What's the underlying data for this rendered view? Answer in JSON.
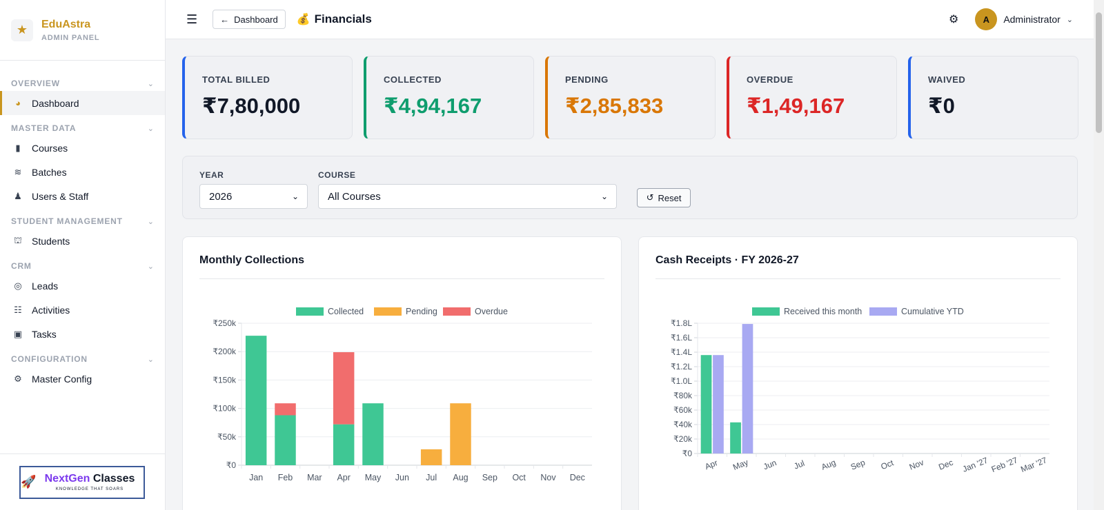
{
  "brand": {
    "name": "EduAstra",
    "subtitle": "ADMIN PANEL",
    "accent": "#c9951f"
  },
  "sidebar": {
    "sections": [
      {
        "label": "OVERVIEW",
        "items": [
          {
            "label": "Dashboard",
            "icon": "palette-icon",
            "active": true
          }
        ]
      },
      {
        "label": "MASTER DATA",
        "items": [
          {
            "label": "Courses",
            "icon": "book-icon"
          },
          {
            "label": "Batches",
            "icon": "layers-icon"
          },
          {
            "label": "Users & Staff",
            "icon": "user-tie-icon"
          }
        ]
      },
      {
        "label": "STUDENT MANAGEMENT",
        "items": [
          {
            "label": "Students",
            "icon": "graduate-icon"
          }
        ]
      },
      {
        "label": "CRM",
        "items": [
          {
            "label": "Leads",
            "icon": "target-icon"
          },
          {
            "label": "Activities",
            "icon": "list-check-icon"
          },
          {
            "label": "Tasks",
            "icon": "clipboard-check-icon"
          }
        ]
      },
      {
        "label": "CONFIGURATION",
        "items": [
          {
            "label": "Master Config",
            "icon": "gear-icon"
          }
        ]
      }
    ],
    "promo": {
      "title_part1": "NextGen",
      "title_part2": "Classes",
      "tagline": "KNOWLEDGE THAT SOARS"
    }
  },
  "topbar": {
    "back_label": "Dashboard",
    "title": "Financials",
    "user": {
      "initial": "A",
      "name": "Administrator"
    }
  },
  "kpis": [
    {
      "label": "TOTAL BILLED",
      "value": "₹7,80,000",
      "color": "#111827",
      "border": "#2563eb"
    },
    {
      "label": "COLLECTED",
      "value": "₹4,94,167",
      "color": "#0f9d6e",
      "border": "#0f9d6e"
    },
    {
      "label": "PENDING",
      "value": "₹2,85,833",
      "color": "#d97706",
      "border": "#d97706"
    },
    {
      "label": "OVERDUE",
      "value": "₹1,49,167",
      "color": "#dc2626",
      "border": "#dc2626"
    },
    {
      "label": "WAIVED",
      "value": "₹0",
      "color": "#111827",
      "border": "#2563eb"
    }
  ],
  "filters": {
    "year_label": "YEAR",
    "year_value": "2026",
    "course_label": "COURSE",
    "course_value": "All Courses",
    "reset_label": "Reset"
  },
  "chart_data": [
    {
      "type": "bar",
      "stacked": true,
      "title": "Monthly Collections",
      "categories": [
        "Jan",
        "Feb",
        "Mar",
        "Apr",
        "May",
        "Jun",
        "Jul",
        "Aug",
        "Sep",
        "Oct",
        "Nov",
        "Dec"
      ],
      "series": [
        {
          "name": "Collected",
          "color": "#3fc794",
          "values": [
            228000,
            88000,
            0,
            72000,
            109000,
            0,
            0,
            0,
            0,
            0,
            0,
            0
          ]
        },
        {
          "name": "Pending",
          "color": "#f7ae3e",
          "values": [
            0,
            0,
            0,
            0,
            0,
            0,
            28000,
            109000,
            0,
            0,
            0,
            0
          ]
        },
        {
          "name": "Overdue",
          "color": "#f16d6d",
          "values": [
            0,
            21000,
            0,
            127000,
            0,
            0,
            0,
            0,
            0,
            0,
            0,
            0
          ]
        }
      ],
      "ylim": [
        0,
        250000
      ],
      "yticks": [
        0,
        50000,
        100000,
        150000,
        200000,
        250000
      ],
      "ytick_labels": [
        "₹0",
        "₹50k",
        "₹100k",
        "₹150k",
        "₹200k",
        "₹250k"
      ],
      "grid": true,
      "legend": "top-center"
    },
    {
      "type": "bar",
      "title": "Cash Receipts · FY 2026-27",
      "categories": [
        "Apr",
        "May",
        "Jun",
        "Jul",
        "Aug",
        "Sep",
        "Oct",
        "Nov",
        "Dec",
        "Jan '27",
        "Feb '27",
        "Mar '27"
      ],
      "series": [
        {
          "name": "Received this month",
          "color": "#3fc794",
          "values": [
            136000,
            43000,
            0,
            0,
            0,
            0,
            0,
            0,
            0,
            0,
            0,
            0
          ]
        },
        {
          "name": "Cumulative YTD",
          "color": "#a8a9f2",
          "values": [
            136000,
            179000,
            0,
            0,
            0,
            0,
            0,
            0,
            0,
            0,
            0,
            0
          ]
        }
      ],
      "ylim": [
        0,
        180000
      ],
      "yticks": [
        0,
        20000,
        40000,
        60000,
        80000,
        100000,
        120000,
        140000,
        160000,
        180000
      ],
      "ytick_labels": [
        "₹0",
        "₹20k",
        "₹40k",
        "₹60k",
        "₹80k",
        "₹1.0L",
        "₹1.2L",
        "₹1.4L",
        "₹1.6L",
        "₹1.8L"
      ],
      "grid": true,
      "legend": "top-center"
    }
  ]
}
